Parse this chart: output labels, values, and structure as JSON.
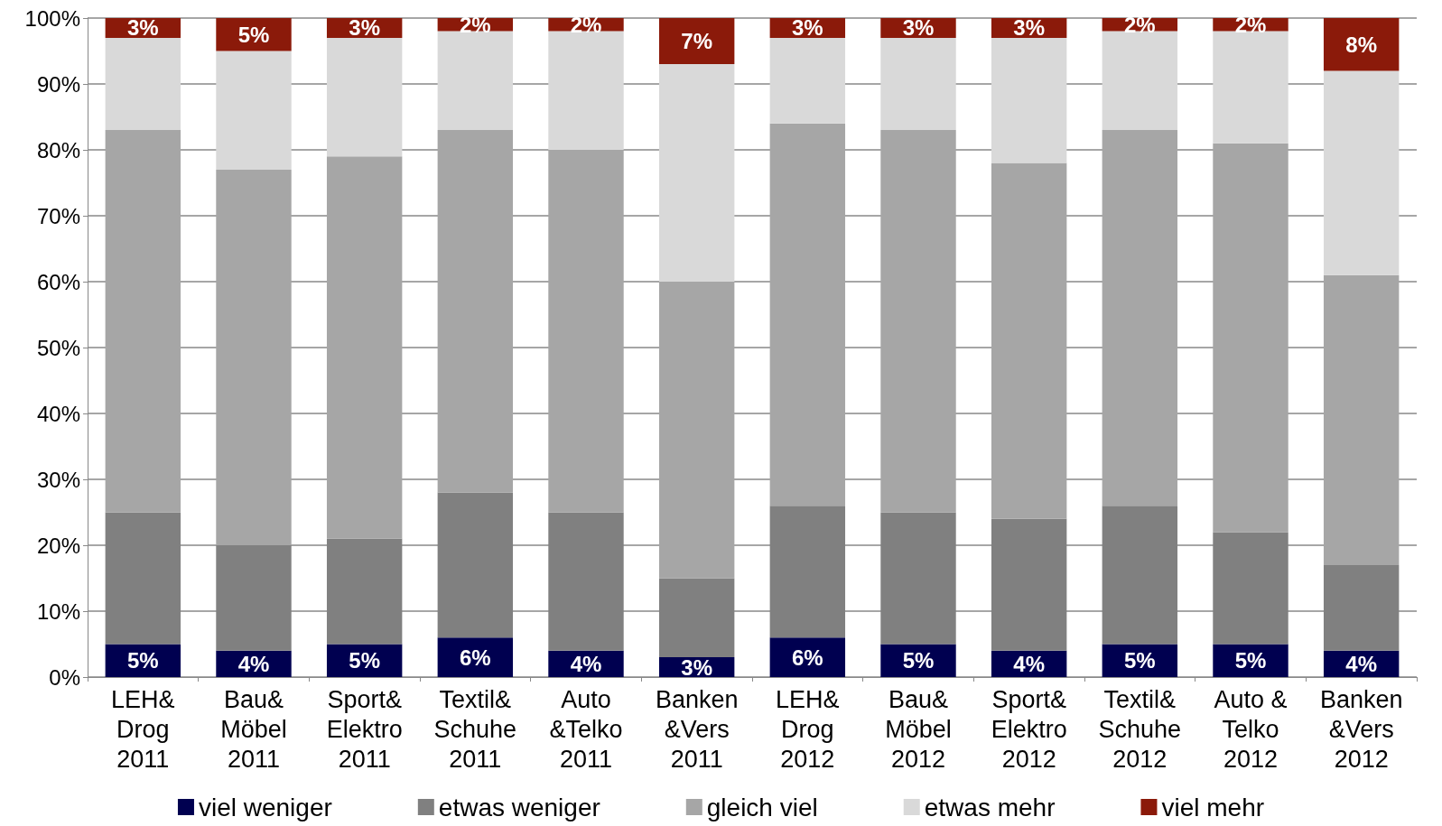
{
  "chart_data": {
    "type": "bar",
    "stacked": true,
    "categories": [
      "LEH&\nDrog\n2011",
      "Bau&\nMöbel\n2011",
      "Sport&\nElektro\n2011",
      "Textil&\nSchuhe\n2011",
      "Auto\n&Telko\n2011",
      "Banken\n&Vers\n2011",
      "LEH&\nDrog\n2012",
      "Bau&\nMöbel\n2012",
      "Sport&\nElektro\n2012",
      "Textil&\nSchuhe\n2012",
      "Auto &\nTelko\n2012",
      "Banken\n&Vers\n2012"
    ],
    "series": [
      {
        "name": "viel weniger",
        "color": "#000050",
        "values": [
          5,
          4,
          5,
          6,
          4,
          3,
          6,
          5,
          4,
          5,
          5,
          4
        ],
        "value_labels": [
          "5%",
          "4%",
          "5%",
          "6%",
          "4%",
          "3%",
          "6%",
          "5%",
          "4%",
          "5%",
          "5%",
          "4%"
        ]
      },
      {
        "name": "etwas weniger",
        "color": "#808080",
        "values": [
          20,
          16,
          16,
          22,
          21,
          12,
          20,
          20,
          20,
          21,
          17,
          13
        ]
      },
      {
        "name": "gleich viel",
        "color": "#a6a6a6",
        "values": [
          58,
          57,
          58,
          55,
          55,
          45,
          58,
          58,
          54,
          57,
          59,
          44
        ]
      },
      {
        "name": "etwas mehr",
        "color": "#d9d9d9",
        "values": [
          14,
          18,
          18,
          15,
          18,
          33,
          13,
          14,
          19,
          15,
          17,
          31
        ]
      },
      {
        "name": "viel mehr",
        "color": "#8b1a0a",
        "values": [
          3,
          5,
          3,
          2,
          2,
          7,
          3,
          3,
          3,
          2,
          2,
          8
        ],
        "value_labels": [
          "3%",
          "5%",
          "3%",
          "2%",
          "2%",
          "7%",
          "3%",
          "3%",
          "3%",
          "2%",
          "2%",
          "8%"
        ]
      }
    ],
    "ylim": [
      0,
      100
    ],
    "yticks": [
      {
        "value": 0,
        "label": "0%"
      },
      {
        "value": 10,
        "label": "10%"
      },
      {
        "value": 20,
        "label": "20%"
      },
      {
        "value": 30,
        "label": "30%"
      },
      {
        "value": 40,
        "label": "40%"
      },
      {
        "value": 50,
        "label": "50%"
      },
      {
        "value": 60,
        "label": "60%"
      },
      {
        "value": 70,
        "label": "70%"
      },
      {
        "value": 80,
        "label": "80%"
      },
      {
        "value": 90,
        "label": "90%"
      },
      {
        "value": 100,
        "label": "100%"
      }
    ],
    "grid": "y",
    "legend": "bottom"
  }
}
